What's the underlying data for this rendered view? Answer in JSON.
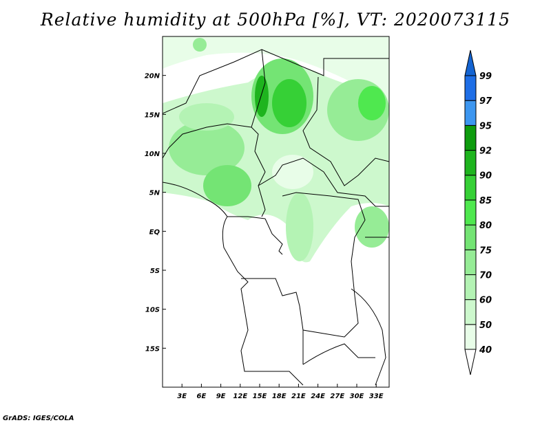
{
  "title": "Relative humidity at 500hPa [%], VT: 2020073115",
  "footer": "GrADS: IGES/COLA",
  "map": {
    "lat_labels": [
      "20N",
      "15N",
      "10N",
      "5N",
      "EQ",
      "5S",
      "10S",
      "15S"
    ],
    "lat_values": [
      20,
      15,
      10,
      5,
      0,
      -5,
      -10,
      -15
    ],
    "lon_labels": [
      "3E",
      "6E",
      "9E",
      "12E",
      "15E",
      "18E",
      "21E",
      "24E",
      "27E",
      "30E",
      "33E"
    ],
    "lon_values": [
      3,
      6,
      9,
      12,
      15,
      18,
      21,
      24,
      27,
      30,
      33
    ],
    "lon_range": [
      0,
      35
    ],
    "lat_range": [
      -20,
      25
    ]
  },
  "colorbar": {
    "levels": [
      "40",
      "50",
      "60",
      "70",
      "75",
      "80",
      "85",
      "90",
      "92",
      "95",
      "97",
      "99"
    ],
    "colors": [
      "#e8fde8",
      "#cdf8cd",
      "#b4f3b4",
      "#96ec96",
      "#74e474",
      "#4fe84f",
      "#36d036",
      "#1eb41e",
      "#0e9c0e",
      "#3c96f0",
      "#1e6ee6"
    ],
    "over_color": "#1464d2",
    "under_color": "#ffffff"
  }
}
